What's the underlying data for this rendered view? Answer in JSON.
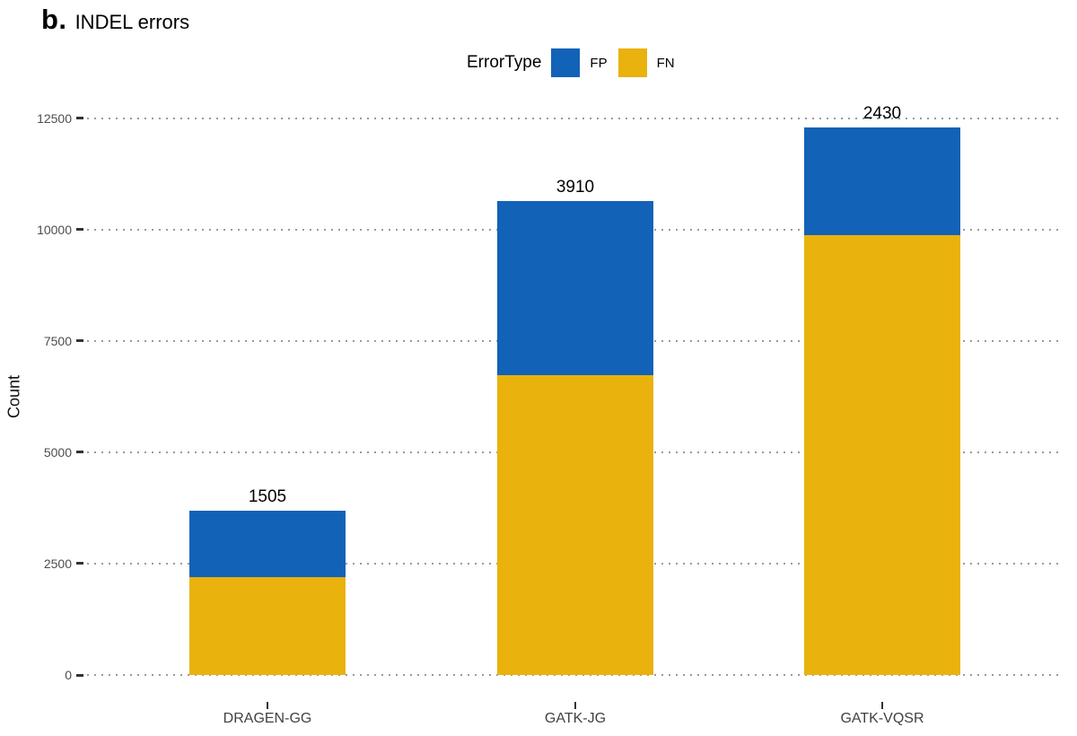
{
  "title": {
    "panel_label": "b.",
    "text": "INDEL errors"
  },
  "chart_data": {
    "type": "bar",
    "stacked": true,
    "title": "b. INDEL errors",
    "categories": [
      "DRAGEN-GG",
      "GATK-JG",
      "GATK-VQSR"
    ],
    "series": [
      {
        "name": "FN",
        "color": "#E9B20C",
        "values": [
          2187,
          6733,
          9865
        ]
      },
      {
        "name": "FP",
        "color": "#1262B8",
        "values": [
          1505,
          3910,
          2430
        ]
      }
    ],
    "stack_order_bottom_to_top": [
      "FN",
      "FP"
    ],
    "data_labels": "each segment value printed at the top edge of its segment",
    "xlabel": "",
    "ylabel": "Count",
    "yticks": [
      0,
      2500,
      5000,
      7500,
      10000,
      12500
    ],
    "ylim": [
      0,
      12500
    ],
    "grid": {
      "horizontal": true,
      "style": "dotted",
      "color": "#9B9B9B"
    },
    "legend": {
      "title": "ErrorType",
      "position": "top",
      "items": [
        {
          "label": "FP",
          "color": "#1262B8"
        },
        {
          "label": "FN",
          "color": "#E9B20C"
        }
      ]
    }
  }
}
